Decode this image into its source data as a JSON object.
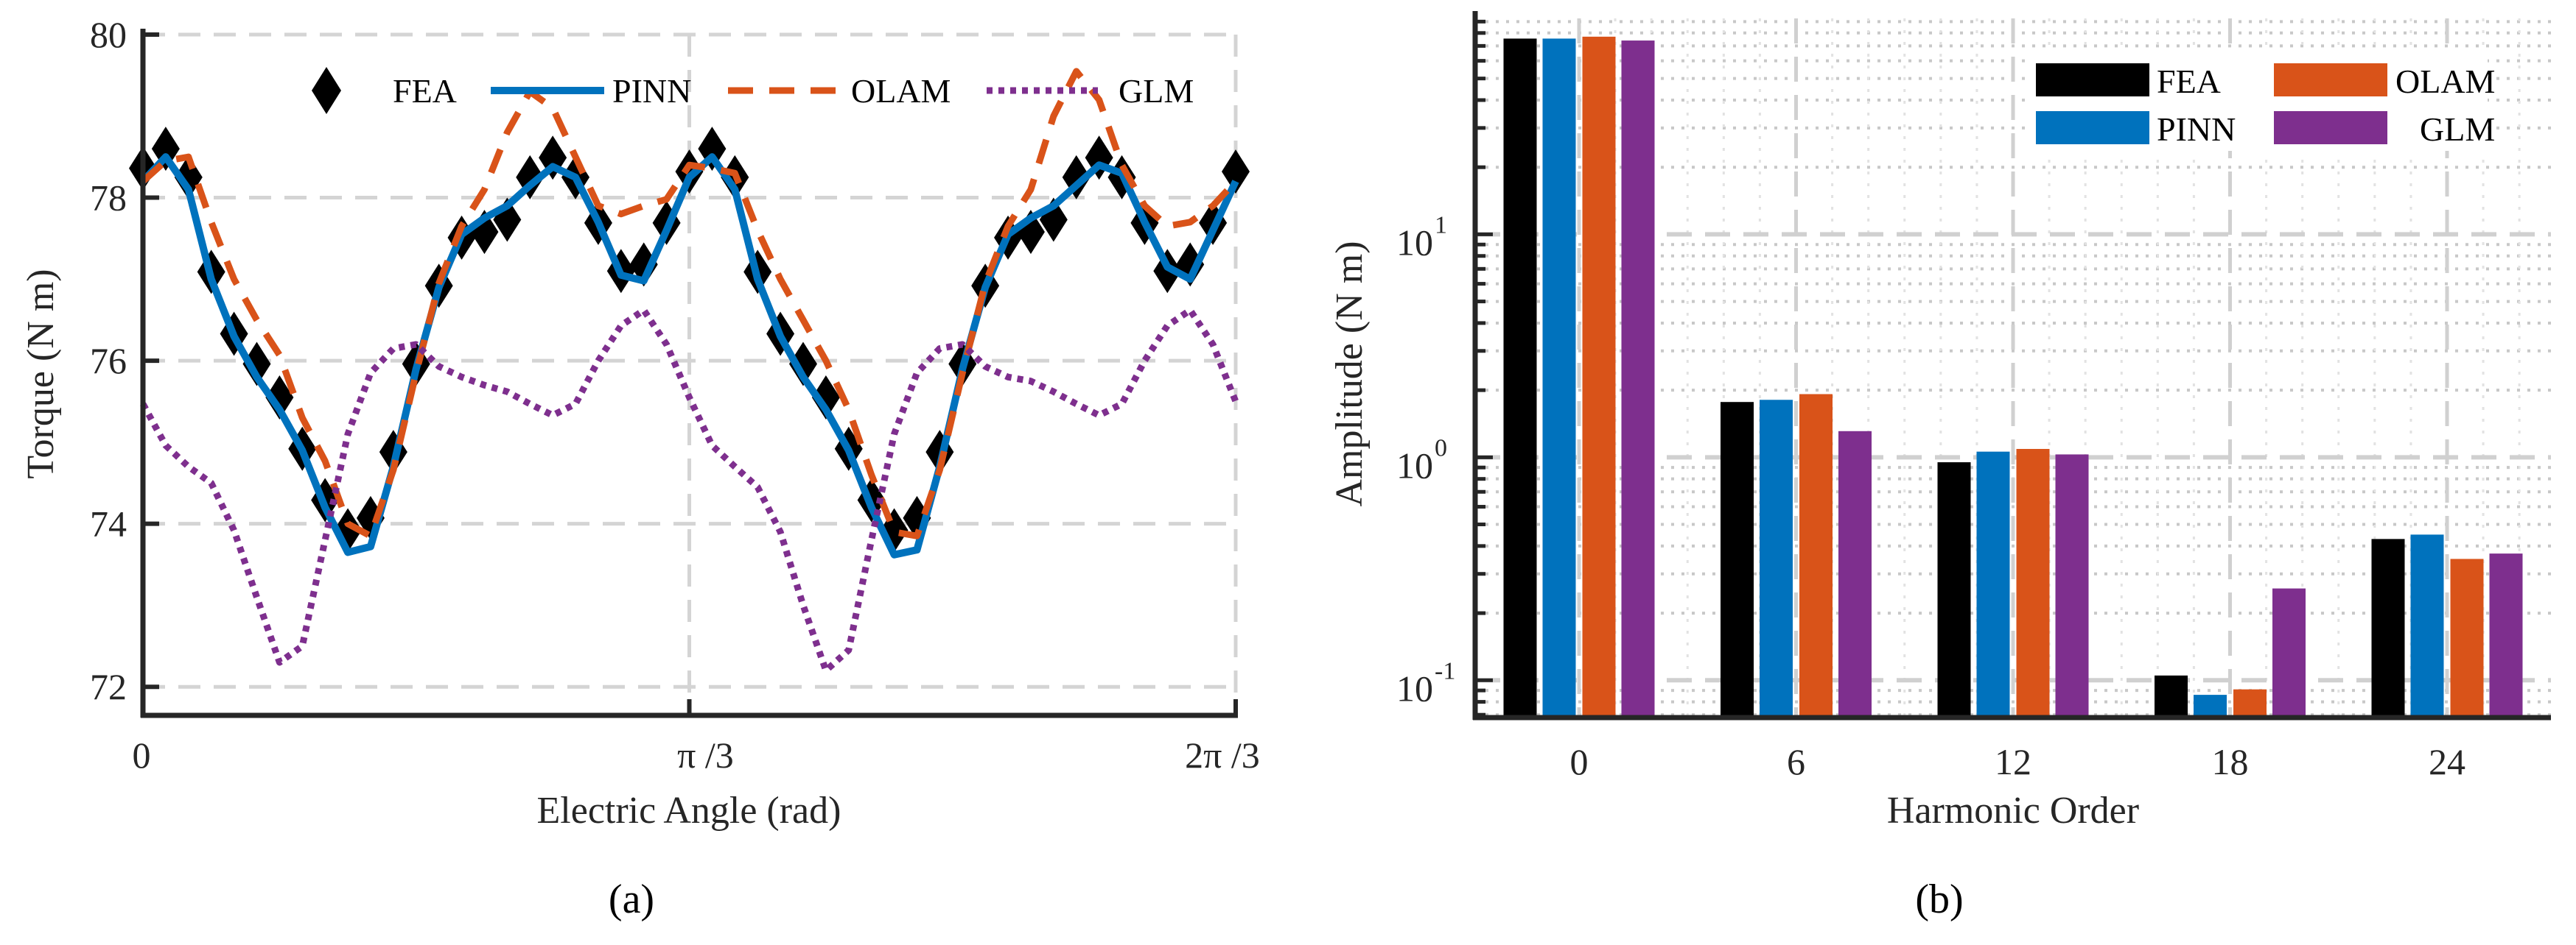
{
  "chart_data": [
    {
      "type": "line",
      "panel_label": "(a)",
      "xlabel": "Electric Angle (rad)",
      "ylabel": "Torque (N m)",
      "x_range_rad": [
        0,
        2.0944
      ],
      "xticks": [
        {
          "value": 0,
          "label": "0"
        },
        {
          "value": 1.0472,
          "label": "π /3"
        },
        {
          "value": 2.0944,
          "label": "2π /3"
        }
      ],
      "yticks": [
        72,
        74,
        76,
        78,
        80
      ],
      "ylim": [
        71.65,
        80
      ],
      "grid": true,
      "legend_placement": "top",
      "series": [
        {
          "name": "FEA",
          "style": "diamond-markers",
          "color": "#000000",
          "values": [
            78.36,
            78.6,
            78.25,
            77.09,
            76.33,
            75.96,
            75.55,
            74.92,
            74.29,
            73.92,
            74.07,
            74.88,
            75.96,
            76.92,
            77.51,
            77.58,
            77.73,
            78.25,
            78.49,
            78.25,
            77.69,
            77.1,
            77.18,
            77.69,
            78.32,
            78.6,
            78.25,
            77.09,
            76.33,
            75.96,
            75.55,
            74.92,
            74.29,
            73.92,
            74.07,
            74.88,
            75.96,
            76.92,
            77.51,
            77.58,
            77.73,
            78.25,
            78.49,
            78.25,
            77.69,
            77.1,
            77.18,
            77.69,
            78.32
          ]
        },
        {
          "name": "PINN",
          "style": "solid",
          "color": "#0072BD",
          "values": [
            78.2,
            78.5,
            78.1,
            77.0,
            76.3,
            75.8,
            75.4,
            74.9,
            74.2,
            73.65,
            73.72,
            74.7,
            75.9,
            76.9,
            77.55,
            77.75,
            77.9,
            78.15,
            78.38,
            78.25,
            77.7,
            77.05,
            76.98,
            77.6,
            78.25,
            78.5,
            78.1,
            77.0,
            76.3,
            75.8,
            75.4,
            74.9,
            74.2,
            73.62,
            73.68,
            74.7,
            75.9,
            76.9,
            77.55,
            77.75,
            77.9,
            78.15,
            78.4,
            78.3,
            77.7,
            77.15,
            77.0,
            77.6,
            78.2
          ]
        },
        {
          "name": "OLAM",
          "style": "dashed",
          "color": "#D95319",
          "values": [
            78.2,
            78.45,
            78.5,
            77.7,
            77.0,
            76.5,
            76.07,
            75.3,
            74.77,
            74.0,
            73.85,
            74.66,
            75.85,
            76.95,
            77.65,
            78.1,
            78.8,
            79.3,
            79.1,
            78.5,
            77.9,
            77.8,
            77.9,
            77.98,
            78.4,
            78.36,
            78.3,
            77.6,
            77.0,
            76.5,
            76.0,
            75.4,
            74.6,
            73.9,
            73.85,
            74.66,
            75.85,
            76.95,
            77.65,
            78.1,
            79.0,
            79.55,
            79.2,
            78.4,
            77.9,
            77.65,
            77.7,
            77.9,
            78.2
          ]
        },
        {
          "name": "GLM",
          "style": "dotted",
          "color": "#7E2F8E",
          "values": [
            75.47,
            74.96,
            74.7,
            74.5,
            73.92,
            73.1,
            72.3,
            72.5,
            73.8,
            75.1,
            75.85,
            76.15,
            76.2,
            75.93,
            75.8,
            75.7,
            75.62,
            75.47,
            75.33,
            75.47,
            76.0,
            76.43,
            76.62,
            76.2,
            75.55,
            74.96,
            74.7,
            74.45,
            73.9,
            73.0,
            72.2,
            72.45,
            73.8,
            75.1,
            75.85,
            76.15,
            76.2,
            75.93,
            75.8,
            75.75,
            75.62,
            75.47,
            75.33,
            75.47,
            76.0,
            76.43,
            76.62,
            76.2,
            75.5
          ]
        }
      ]
    },
    {
      "type": "bar",
      "panel_label": "(b)",
      "xlabel": "Harmonic Order",
      "ylabel": "Amplitude (N m)",
      "yscale": "log",
      "categories": [
        "0",
        "6",
        "12",
        "18",
        "24"
      ],
      "yticks": [
        {
          "value": 0.1,
          "base": "10",
          "exp": "-1"
        },
        {
          "value": 1,
          "base": "10",
          "exp": "0"
        },
        {
          "value": 10,
          "base": "10",
          "exp": "1"
        }
      ],
      "ylim": [
        0.068,
        93
      ],
      "grid": true,
      "legend_placement": "top-right",
      "series": [
        {
          "name": "FEA",
          "color": "#000000",
          "values": [
            75.5,
            1.77,
            0.95,
            0.105,
            0.43
          ]
        },
        {
          "name": "PINN",
          "color": "#0072BD",
          "values": [
            75.5,
            1.81,
            1.06,
            0.086,
            0.45
          ]
        },
        {
          "name": "OLAM",
          "color": "#D95319",
          "values": [
            77.0,
            1.92,
            1.09,
            0.091,
            0.35
          ]
        },
        {
          "name": "GLM",
          "color": "#7E2F8E",
          "values": [
            74.0,
            1.31,
            1.03,
            0.258,
            0.37
          ]
        }
      ]
    }
  ]
}
